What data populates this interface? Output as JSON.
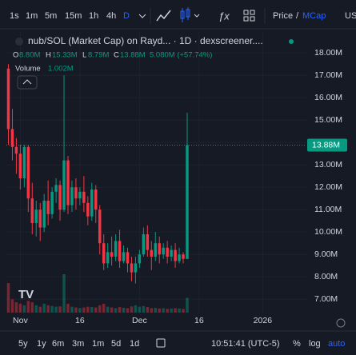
{
  "toolbar": {
    "intervals": [
      "1s",
      "1m",
      "5m",
      "15m",
      "1h",
      "4h",
      "D"
    ],
    "price": "Price",
    "slash": "/",
    "mcap": "MCap",
    "us": "US"
  },
  "legend": {
    "symbol": "nub/SOL (Market Cap) on Rayd... · 1D · dexscreener....",
    "o_key": "O",
    "o": "8.80M",
    "h_key": "H",
    "h": "15.33M",
    "l_key": "L",
    "l": "8.79M",
    "c_key": "C",
    "c": "13.88M",
    "change": "5.080M (+57.74%)",
    "volume_key": "Volume",
    "volume": "1.002M"
  },
  "chart_data": {
    "type": "candlestick",
    "open": [
      17300000,
      14600000,
      13800000,
      13500000,
      12400000,
      13800000,
      11500000,
      10400000,
      11000000,
      10200000,
      11400000,
      10800000,
      11800000,
      12100000,
      11000000,
      13200000,
      11200000,
      12000000,
      11500000,
      11800000,
      11300000,
      10700000,
      11900000,
      11000000,
      9500000,
      8600000,
      9100000,
      8900000,
      9600000,
      8700000,
      9100000,
      8600000,
      8200000,
      8600000,
      9000000,
      9900000,
      9200000,
      8900000,
      9500000,
      9000000,
      9300000,
      8900000,
      9200000,
      8700000,
      9000000,
      8800000
    ],
    "high": [
      17500000,
      15500000,
      14200000,
      13900000,
      13900000,
      13900000,
      12200000,
      11400000,
      11300000,
      11700000,
      12300000,
      12000000,
      12400000,
      12300000,
      17000000,
      13400000,
      12300000,
      12400000,
      12000000,
      12500000,
      11600000,
      12200000,
      12100000,
      11200000,
      9900000,
      9500000,
      9800000,
      9900000,
      10100000,
      9400000,
      9300000,
      8900000,
      8900000,
      9200000,
      10200000,
      10300000,
      9600000,
      10000000,
      9800000,
      9500000,
      9600000,
      9400000,
      9500000,
      9300000,
      9100000,
      15330000
    ],
    "low": [
      13900000,
      13200000,
      12600000,
      11900000,
      12000000,
      10900000,
      9900000,
      9800000,
      9600000,
      10000000,
      10300000,
      10600000,
      11300000,
      10500000,
      10900000,
      10800000,
      10900000,
      11000000,
      11200000,
      10900000,
      10300000,
      10500000,
      10400000,
      9000000,
      8300000,
      8400000,
      8500000,
      8700000,
      8400000,
      8600000,
      8200000,
      7800000,
      7700000,
      8400000,
      8900000,
      8900000,
      8300000,
      8700000,
      8600000,
      8800000,
      8600000,
      8700000,
      8400000,
      8600000,
      8600000,
      8790000
    ],
    "close": [
      14600000,
      13800000,
      13500000,
      12400000,
      13800000,
      11500000,
      10400000,
      11000000,
      10200000,
      11400000,
      10800000,
      11800000,
      12100000,
      11000000,
      13200000,
      11200000,
      12000000,
      11500000,
      11800000,
      11300000,
      10700000,
      11900000,
      11000000,
      9500000,
      8600000,
      9100000,
      8900000,
      9600000,
      8700000,
      9100000,
      8600000,
      8200000,
      8600000,
      9000000,
      9900000,
      9200000,
      8900000,
      9500000,
      9000000,
      9300000,
      8900000,
      9200000,
      8700000,
      9000000,
      8800000,
      13880000
    ],
    "volumes": [
      2000000,
      900000,
      700000,
      600000,
      500000,
      800000,
      700000,
      500000,
      400000,
      600000,
      500000,
      450000,
      400000,
      420000,
      2600000,
      600000,
      400000,
      350000,
      300000,
      350000,
      400000,
      380000,
      350000,
      500000,
      600000,
      400000,
      350000,
      300000,
      380000,
      330000,
      300000,
      420000,
      500000,
      400000,
      450000,
      380000,
      300000,
      320000,
      280000,
      300000,
      260000,
      280000,
      300000,
      280000,
      250000,
      1002000
    ],
    "up_color": "#089981",
    "down_color": "#f23645",
    "last_label": "13.88M",
    "ylim": [
      6400000,
      18400000
    ],
    "yticks": [
      {
        "value": 7000000,
        "label": "7.00M"
      },
      {
        "value": 8000000,
        "label": "8.00M"
      },
      {
        "value": 9000000,
        "label": "9.00M"
      },
      {
        "value": 10000000,
        "label": "10.00M"
      },
      {
        "value": 11000000,
        "label": "11.00M"
      },
      {
        "value": 12000000,
        "label": "12.00M"
      },
      {
        "value": 13000000,
        "label": "13.00M"
      },
      {
        "value": 14000000,
        "label": "14.00M"
      },
      {
        "value": 15000000,
        "label": "15.00M"
      },
      {
        "value": 16000000,
        "label": "16.00M"
      },
      {
        "value": 17000000,
        "label": "17.00M"
      },
      {
        "value": 18000000,
        "label": "18.00M"
      }
    ],
    "xlim": [
      -0.5,
      75
    ],
    "xticks": [
      {
        "value": 3,
        "label": "Nov"
      },
      {
        "value": 18,
        "label": "16"
      },
      {
        "value": 33,
        "label": "Dec"
      },
      {
        "value": 48,
        "label": "16"
      },
      {
        "value": 64,
        "label": "2026"
      }
    ],
    "grid": true
  },
  "bottom": {
    "ranges": [
      "5y",
      "1y",
      "6m",
      "3m",
      "1m",
      "5d",
      "1d"
    ],
    "time": "10:51:41 (UTC-5)",
    "percent": "%",
    "log": "log",
    "auto": "auto"
  }
}
